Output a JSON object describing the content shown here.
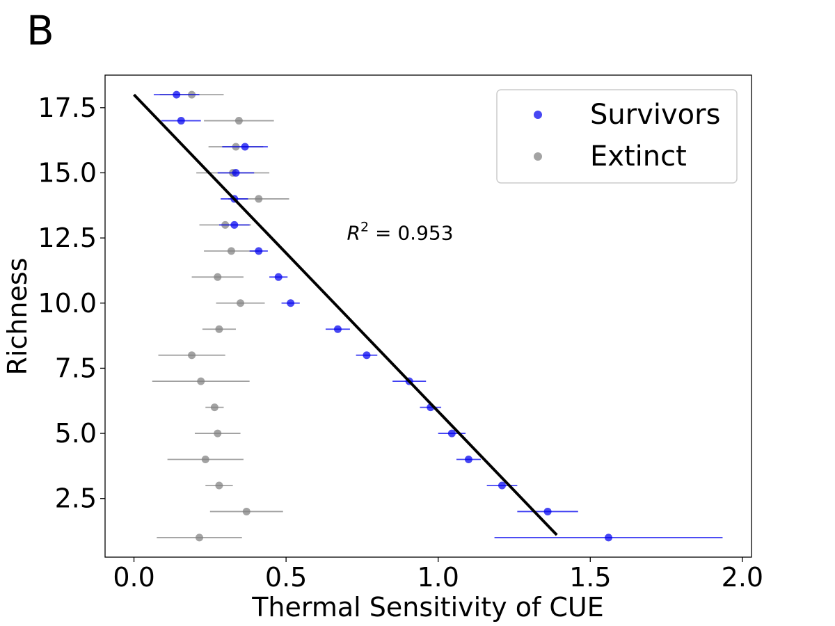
{
  "panel_label": "B",
  "chart_data": {
    "type": "scatter",
    "xlabel": "Thermal Sensitivity of CUE",
    "ylabel": "Richness",
    "xlim": [
      -0.095,
      2.03
    ],
    "ylim": [
      0.25,
      18.75
    ],
    "xticks": [
      0.0,
      0.5,
      1.0,
      1.5,
      2.0
    ],
    "xtick_labels": [
      "0.0",
      "0.5",
      "1.0",
      "1.5",
      "2.0"
    ],
    "yticks": [
      2.5,
      5.0,
      7.5,
      10.0,
      12.5,
      15.0,
      17.5
    ],
    "ytick_labels": [
      "2.5",
      "5.0",
      "7.5",
      "10.0",
      "12.5",
      "15.0",
      "17.5"
    ],
    "grid": false,
    "legend_placement": "top-right",
    "annotation": {
      "base": "R",
      "exponent": "2",
      "rest": " = 0.953",
      "x": 0.7,
      "y": 12.7
    },
    "series": [
      {
        "name": "Survivors",
        "color": "#0000ee",
        "points": [
          {
            "y": 18,
            "x": 0.14,
            "err": 0.075
          },
          {
            "y": 17,
            "x": 0.155,
            "err": 0.065
          },
          {
            "y": 16,
            "x": 0.365,
            "err": 0.075
          },
          {
            "y": 15,
            "x": 0.335,
            "err": 0.06
          },
          {
            "y": 14,
            "x": 0.33,
            "err": 0.045
          },
          {
            "y": 13,
            "x": 0.33,
            "err": 0.05
          },
          {
            "y": 12,
            "x": 0.41,
            "err": 0.03
          },
          {
            "y": 11,
            "x": 0.475,
            "err": 0.03
          },
          {
            "y": 10,
            "x": 0.515,
            "err": 0.03
          },
          {
            "y": 9,
            "x": 0.67,
            "err": 0.04
          },
          {
            "y": 8,
            "x": 0.765,
            "err": 0.035
          },
          {
            "y": 7,
            "x": 0.905,
            "err": 0.055
          },
          {
            "y": 6,
            "x": 0.975,
            "err": 0.035
          },
          {
            "y": 5,
            "x": 1.045,
            "err": 0.045
          },
          {
            "y": 4,
            "x": 1.1,
            "err": 0.04
          },
          {
            "y": 3,
            "x": 1.21,
            "err": 0.05
          },
          {
            "y": 2,
            "x": 1.36,
            "err": 0.1
          },
          {
            "y": 1,
            "x": 1.56,
            "err": 0.375
          }
        ]
      },
      {
        "name": "Extinct",
        "color": "#808080",
        "points": [
          {
            "y": 18,
            "x": 0.19,
            "err": 0.105
          },
          {
            "y": 17,
            "x": 0.345,
            "err": 0.115
          },
          {
            "y": 16,
            "x": 0.335,
            "err": 0.09
          },
          {
            "y": 15,
            "x": 0.325,
            "err": 0.12
          },
          {
            "y": 14,
            "x": 0.41,
            "err": 0.1
          },
          {
            "y": 13,
            "x": 0.3,
            "err": 0.085
          },
          {
            "y": 12,
            "x": 0.32,
            "err": 0.09
          },
          {
            "y": 11,
            "x": 0.275,
            "err": 0.085
          },
          {
            "y": 10,
            "x": 0.35,
            "err": 0.08
          },
          {
            "y": 9,
            "x": 0.28,
            "err": 0.055
          },
          {
            "y": 8,
            "x": 0.19,
            "err": 0.11
          },
          {
            "y": 7,
            "x": 0.22,
            "err": 0.16
          },
          {
            "y": 6,
            "x": 0.265,
            "err": 0.03
          },
          {
            "y": 5,
            "x": 0.275,
            "err": 0.075
          },
          {
            "y": 4,
            "x": 0.235,
            "err": 0.125
          },
          {
            "y": 3,
            "x": 0.28,
            "err": 0.045
          },
          {
            "y": 2,
            "x": 0.37,
            "err": 0.12
          },
          {
            "y": 1,
            "x": 0.215,
            "err": 0.14
          }
        ]
      }
    ],
    "fit_line": {
      "color": "#000000",
      "x": [
        0.0,
        1.39
      ],
      "y": [
        18.0,
        1.1
      ]
    }
  }
}
